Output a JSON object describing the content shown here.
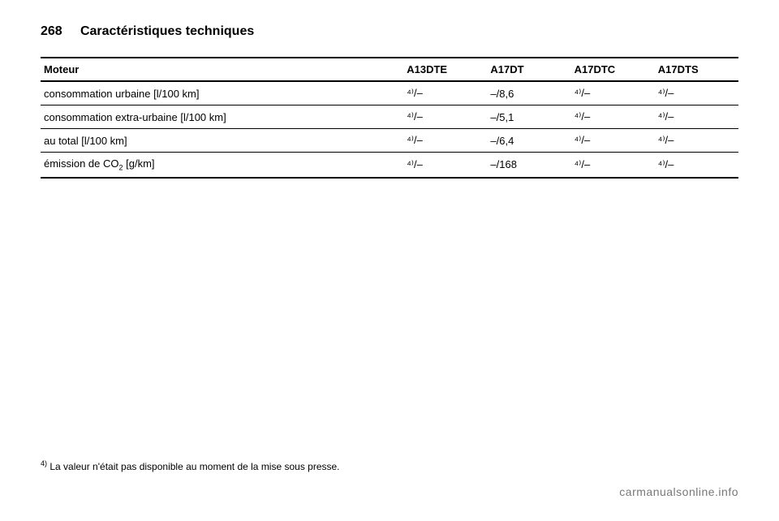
{
  "header": {
    "page_number": "268",
    "section_title": "Caractéristiques techniques"
  },
  "table": {
    "columns": [
      "Moteur",
      "A13DTE",
      "A17DT",
      "A17DTC",
      "A17DTS"
    ],
    "rows": [
      {
        "label_pre": "consommation urbaine [l/100 km]",
        "label_sub": "",
        "cells": [
          "⁴⁾/–",
          "–/8,6",
          "⁴⁾/–",
          "⁴⁾/–"
        ]
      },
      {
        "label_pre": "consommation extra-urbaine [l/100 km]",
        "label_sub": "",
        "cells": [
          "⁴⁾/–",
          "–/5,1",
          "⁴⁾/–",
          "⁴⁾/–"
        ]
      },
      {
        "label_pre": "au total [l/100 km]",
        "label_sub": "",
        "cells": [
          "⁴⁾/–",
          "–/6,4",
          "⁴⁾/–",
          "⁴⁾/–"
        ]
      },
      {
        "label_pre": "émission de CO",
        "label_sub": "2",
        "label_post": " [g/km]",
        "cells": [
          "⁴⁾/–",
          "–/168",
          "⁴⁾/–",
          "⁴⁾/–"
        ]
      }
    ]
  },
  "footnote": {
    "marker": "4)",
    "text": "La valeur n'était pas disponible au moment de la mise sous presse."
  },
  "watermark": "carmanualsonline.info"
}
